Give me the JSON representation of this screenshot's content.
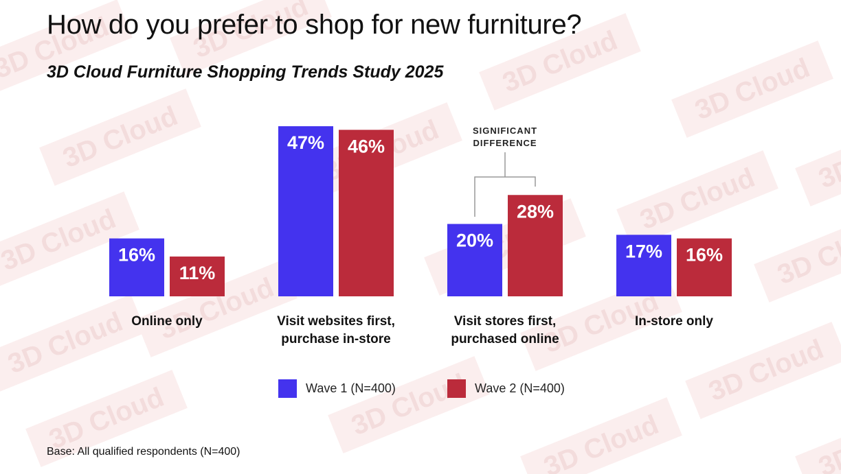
{
  "title": "How do you prefer to shop for new furniture?",
  "subtitle": "3D Cloud Furniture Shopping Trends Study 2025",
  "watermark_text": "3D Cloud",
  "base_note": "Base: All qualified respondents (N=400)",
  "annotation": {
    "line1": "SIGNIFICANT",
    "line2": "DIFFERENCE",
    "category_index": 2
  },
  "colors": {
    "wave1": "#4433ee",
    "wave2": "#bb2b3b",
    "bracket": "#999999"
  },
  "chart_data": {
    "type": "bar",
    "categories": [
      [
        "Online only"
      ],
      [
        "Visit websites first,",
        "purchase in-store"
      ],
      [
        "Visit stores first,",
        "purchased online"
      ],
      [
        "In-store only"
      ]
    ],
    "series": [
      {
        "name": "Wave 1 (N=400)",
        "values": [
          16,
          47,
          20,
          17
        ],
        "labels": [
          "16%",
          "47%",
          "20%",
          "17%"
        ]
      },
      {
        "name": "Wave 2 (N=400)",
        "values": [
          11,
          46,
          28,
          16
        ],
        "labels": [
          "11%",
          "46%",
          "28%",
          "16%"
        ]
      }
    ],
    "ylim": [
      0,
      50
    ],
    "grid": false,
    "legend": "bottom-center"
  }
}
